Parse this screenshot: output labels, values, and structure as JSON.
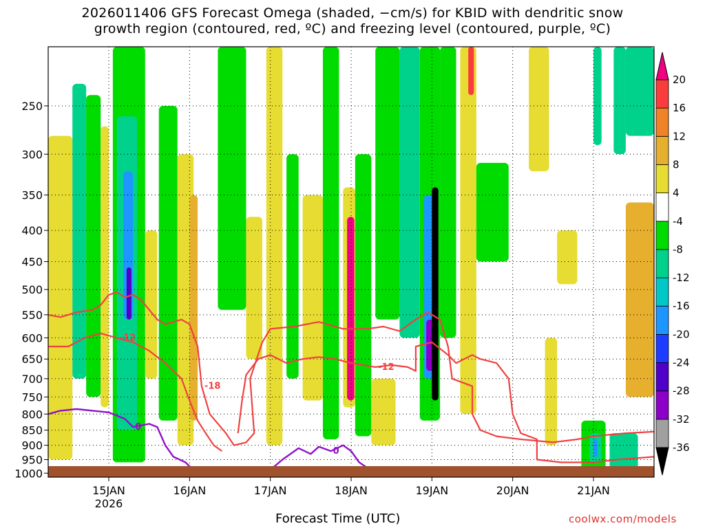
{
  "title_lines": [
    "2026011406 GFS Forecast Omega (shaded, −cm/s) for KBID with dendritic snow",
    "growth region (contoured, red, ºC) and freezing level (contoured, purple, ºC)"
  ],
  "credit": "coolwx.com/models",
  "chart_data": {
    "type": "heatmap",
    "title": "2026011406 GFS Forecast Omega (shaded, −cm/s) for KBID with dendritic snow growth region (contoured, red, ºC) and freezing level (contoured, purple, ºC)",
    "xlabel": "Forecast Time (UTC)",
    "ylabel": "",
    "x_range_days": [
      14.25,
      21.75
    ],
    "y_scale": "log-pressure",
    "y_range_hpa": [
      1015,
      200
    ],
    "x_ticks": [
      {
        "day": 15,
        "label": "15JAN",
        "sublabel": "2026"
      },
      {
        "day": 16,
        "label": "16JAN"
      },
      {
        "day": 17,
        "label": "17JAN"
      },
      {
        "day": 18,
        "label": "18JAN"
      },
      {
        "day": 19,
        "label": "19JAN"
      },
      {
        "day": 20,
        "label": "20JAN"
      },
      {
        "day": 21,
        "label": "21JAN"
      }
    ],
    "y_ticks": [
      250,
      300,
      350,
      400,
      450,
      500,
      550,
      600,
      650,
      700,
      750,
      800,
      850,
      900,
      950,
      1000
    ],
    "grid": true,
    "colorbar": {
      "levels": [
        -36,
        -32,
        -28,
        -24,
        -20,
        -16,
        -12,
        -8,
        -4,
        4,
        8,
        12,
        16,
        20
      ],
      "colors": [
        "#000000",
        "#a0a0a0",
        "#8c00c8",
        "#5000c8",
        "#1e3cff",
        "#1e96ff",
        "#00c8c8",
        "#00d28c",
        "#00dc00",
        "#ffffff",
        "#e6dc32",
        "#e6af2d",
        "#f08228",
        "#fa3c3c",
        "#f00082"
      ],
      "placement": "right",
      "extend": "both"
    },
    "shading": [
      {
        "x": [
          14.25,
          14.55
        ],
        "p": [
          280,
          950
        ],
        "color": "#e6dc32"
      },
      {
        "x": [
          14.55,
          14.72
        ],
        "p": [
          230,
          700
        ],
        "color": "#00d28c"
      },
      {
        "x": [
          14.72,
          14.9
        ],
        "p": [
          240,
          750
        ],
        "color": "#00dc00"
      },
      {
        "x": [
          14.9,
          15.0
        ],
        "p": [
          270,
          780
        ],
        "color": "#e6dc32"
      },
      {
        "x": [
          15.05,
          15.45
        ],
        "p": [
          200,
          960
        ],
        "color": "#00dc00"
      },
      {
        "x": [
          15.1,
          15.35
        ],
        "p": [
          260,
          850
        ],
        "color": "#00d28c"
      },
      {
        "x": [
          15.18,
          15.3
        ],
        "p": [
          320,
          560
        ],
        "color": "#1e96ff"
      },
      {
        "x": [
          15.22,
          15.28
        ],
        "p": [
          460,
          560
        ],
        "color": "#5000c8"
      },
      {
        "x": [
          15.45,
          15.6
        ],
        "p": [
          400,
          700
        ],
        "color": "#e6dc32"
      },
      {
        "x": [
          15.62,
          15.85
        ],
        "p": [
          250,
          820
        ],
        "color": "#00dc00"
      },
      {
        "x": [
          15.85,
          16.05
        ],
        "p": [
          300,
          900
        ],
        "color": "#e6dc32"
      },
      {
        "x": [
          16.0,
          16.1
        ],
        "p": [
          350,
          820
        ],
        "color": "#e6af2d"
      },
      {
        "x": [
          16.35,
          16.7
        ],
        "p": [
          200,
          540
        ],
        "color": "#00dc00"
      },
      {
        "x": [
          16.7,
          16.9
        ],
        "p": [
          380,
          650
        ],
        "color": "#e6dc32"
      },
      {
        "x": [
          16.95,
          17.15
        ],
        "p": [
          200,
          900
        ],
        "color": "#e6dc32"
      },
      {
        "x": [
          17.2,
          17.35
        ],
        "p": [
          300,
          700
        ],
        "color": "#00dc00"
      },
      {
        "x": [
          17.4,
          17.65
        ],
        "p": [
          350,
          760
        ],
        "color": "#e6dc32"
      },
      {
        "x": [
          17.65,
          17.85
        ],
        "p": [
          200,
          880
        ],
        "color": "#00dc00"
      },
      {
        "x": [
          17.9,
          18.05
        ],
        "p": [
          340,
          780
        ],
        "color": "#e6dc32"
      },
      {
        "x": [
          17.95,
          18.04
        ],
        "p": [
          380,
          760
        ],
        "color": "#f00082"
      },
      {
        "x": [
          18.05,
          18.25
        ],
        "p": [
          300,
          870
        ],
        "color": "#00dc00"
      },
      {
        "x": [
          18.25,
          18.55
        ],
        "p": [
          700,
          900
        ],
        "color": "#e6dc32"
      },
      {
        "x": [
          18.3,
          18.6
        ],
        "p": [
          200,
          560
        ],
        "color": "#00dc00"
      },
      {
        "x": [
          18.6,
          18.85
        ],
        "p": [
          200,
          600
        ],
        "color": "#00d28c"
      },
      {
        "x": [
          18.85,
          19.1
        ],
        "p": [
          200,
          820
        ],
        "color": "#00dc00"
      },
      {
        "x": [
          18.9,
          19.05
        ],
        "p": [
          350,
          700
        ],
        "color": "#1e96ff"
      },
      {
        "x": [
          18.93,
          19.02
        ],
        "p": [
          560,
          680
        ],
        "color": "#8c00c8"
      },
      {
        "x": [
          19.0,
          19.08
        ],
        "p": [
          340,
          760
        ],
        "color": "#000000"
      },
      {
        "x": [
          19.1,
          19.3
        ],
        "p": [
          200,
          600
        ],
        "color": "#00dc00"
      },
      {
        "x": [
          19.35,
          19.55
        ],
        "p": [
          200,
          800
        ],
        "color": "#e6dc32"
      },
      {
        "x": [
          19.45,
          19.52
        ],
        "p": [
          200,
          240
        ],
        "color": "#fa3c3c"
      },
      {
        "x": [
          19.55,
          19.95
        ],
        "p": [
          310,
          450
        ],
        "color": "#00dc00"
      },
      {
        "x": [
          20.2,
          20.45
        ],
        "p": [
          200,
          320
        ],
        "color": "#e6dc32"
      },
      {
        "x": [
          20.4,
          20.55
        ],
        "p": [
          600,
          900
        ],
        "color": "#e6dc32"
      },
      {
        "x": [
          20.55,
          20.8
        ],
        "p": [
          400,
          490
        ],
        "color": "#e6dc32"
      },
      {
        "x": [
          21.0,
          21.1
        ],
        "p": [
          200,
          290
        ],
        "color": "#00d28c"
      },
      {
        "x": [
          21.25,
          21.4
        ],
        "p": [
          200,
          300
        ],
        "color": "#00d28c"
      },
      {
        "x": [
          21.4,
          21.75
        ],
        "p": [
          360,
          750
        ],
        "color": "#e6af2d"
      },
      {
        "x": [
          21.4,
          21.75
        ],
        "p": [
          200,
          280
        ],
        "color": "#00d28c"
      },
      {
        "x": [
          20.85,
          21.15
        ],
        "p": [
          820,
          990
        ],
        "color": "#00dc00"
      },
      {
        "x": [
          20.95,
          21.1
        ],
        "p": [
          860,
          960
        ],
        "color": "#00d28c"
      },
      {
        "x": [
          21.0,
          21.05
        ],
        "p": [
          880,
          940
        ],
        "color": "#1e96ff"
      },
      {
        "x": [
          21.2,
          21.55
        ],
        "p": [
          860,
          990
        ],
        "color": "#00d28c"
      }
    ],
    "red_contours": [
      {
        "label": "-18",
        "points": [
          [
            14.25,
            550
          ],
          [
            14.4,
            555
          ],
          [
            14.6,
            545
          ],
          [
            14.8,
            540
          ],
          [
            14.9,
            530
          ],
          [
            15.0,
            510
          ],
          [
            15.1,
            505
          ],
          [
            15.2,
            515
          ],
          [
            15.3,
            510
          ],
          [
            15.4,
            520
          ],
          [
            15.6,
            560
          ],
          [
            15.7,
            570
          ],
          [
            15.9,
            560
          ],
          [
            16.0,
            570
          ],
          [
            16.1,
            620
          ],
          [
            16.15,
            720
          ],
          [
            16.25,
            800
          ],
          [
            16.45,
            860
          ],
          [
            16.55,
            900
          ],
          [
            16.7,
            890
          ],
          [
            16.8,
            860
          ],
          [
            16.75,
            700
          ],
          [
            16.9,
            610
          ],
          [
            17.0,
            580
          ],
          [
            17.3,
            575
          ],
          [
            17.6,
            565
          ],
          [
            17.9,
            580
          ],
          [
            18.2,
            580
          ],
          [
            18.4,
            575
          ],
          [
            18.6,
            585
          ],
          [
            18.8,
            560
          ],
          [
            18.95,
            545
          ],
          [
            19.1,
            560
          ],
          [
            19.2,
            620
          ],
          [
            19.25,
            700
          ],
          [
            19.5,
            720
          ],
          [
            19.5,
            800
          ],
          [
            19.6,
            850
          ],
          [
            19.8,
            870
          ],
          [
            20.1,
            880
          ],
          [
            20.5,
            890
          ],
          [
            20.8,
            880
          ],
          [
            21.0,
            870
          ],
          [
            21.4,
            860
          ],
          [
            21.75,
            855
          ]
        ]
      },
      {
        "label": "-12",
        "points": [
          [
            14.25,
            620
          ],
          [
            14.5,
            620
          ],
          [
            14.7,
            600
          ],
          [
            14.9,
            590
          ],
          [
            15.1,
            600
          ],
          [
            15.3,
            610
          ],
          [
            15.5,
            630
          ],
          [
            15.7,
            660
          ],
          [
            15.9,
            700
          ],
          [
            16.0,
            760
          ],
          [
            16.1,
            820
          ],
          [
            16.2,
            860
          ],
          [
            16.3,
            900
          ],
          [
            16.4,
            920
          ]
        ]
      },
      {
        "label": "-12",
        "points": [
          [
            16.6,
            860
          ],
          [
            16.65,
            760
          ],
          [
            16.7,
            690
          ],
          [
            16.85,
            650
          ],
          [
            17.0,
            640
          ],
          [
            17.2,
            660
          ],
          [
            17.4,
            650
          ],
          [
            17.6,
            645
          ],
          [
            17.8,
            650
          ],
          [
            18.0,
            660
          ],
          [
            18.3,
            670
          ],
          [
            18.5,
            665
          ],
          [
            18.7,
            670
          ],
          [
            18.8,
            680
          ],
          [
            18.8,
            620
          ],
          [
            19.0,
            610
          ],
          [
            19.2,
            640
          ],
          [
            19.3,
            660
          ],
          [
            19.5,
            640
          ],
          [
            19.6,
            650
          ],
          [
            19.8,
            660
          ],
          [
            19.95,
            700
          ],
          [
            20.0,
            800
          ],
          [
            20.1,
            860
          ],
          [
            20.3,
            880
          ],
          [
            20.3,
            950
          ],
          [
            20.6,
            960
          ],
          [
            21.0,
            960
          ],
          [
            21.3,
            950
          ],
          [
            21.75,
            940
          ]
        ]
      }
    ],
    "purple_contour": {
      "label": "0",
      "segments": [
        [
          [
            14.25,
            800
          ],
          [
            14.4,
            790
          ],
          [
            14.6,
            785
          ],
          [
            14.8,
            790
          ],
          [
            15.0,
            795
          ],
          [
            15.2,
            815
          ],
          [
            15.3,
            840
          ],
          [
            15.5,
            830
          ],
          [
            15.6,
            840
          ],
          [
            15.7,
            900
          ],
          [
            15.8,
            940
          ],
          [
            15.95,
            960
          ],
          [
            16.05,
            990
          ]
        ],
        [
          [
            16.95,
            1000
          ],
          [
            17.15,
            950
          ],
          [
            17.35,
            910
          ],
          [
            17.5,
            930
          ],
          [
            17.6,
            905
          ],
          [
            17.75,
            920
          ],
          [
            17.9,
            900
          ],
          [
            18.0,
            920
          ],
          [
            18.1,
            960
          ],
          [
            18.25,
            990
          ],
          [
            18.45,
            1000
          ]
        ]
      ]
    }
  }
}
